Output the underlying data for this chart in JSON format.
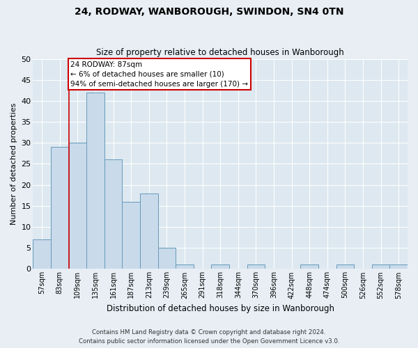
{
  "title_line1": "24, RODWAY, WANBOROUGH, SWINDON, SN4 0TN",
  "title_line2": "Size of property relative to detached houses in Wanborough",
  "xlabel": "Distribution of detached houses by size in Wanborough",
  "ylabel": "Number of detached properties",
  "categories": [
    "57sqm",
    "83sqm",
    "109sqm",
    "135sqm",
    "161sqm",
    "187sqm",
    "213sqm",
    "239sqm",
    "265sqm",
    "291sqm",
    "318sqm",
    "344sqm",
    "370sqm",
    "396sqm",
    "422sqm",
    "448sqm",
    "474sqm",
    "500sqm",
    "526sqm",
    "552sqm",
    "578sqm"
  ],
  "values": [
    7,
    29,
    30,
    42,
    26,
    16,
    18,
    5,
    1,
    0,
    1,
    0,
    1,
    0,
    0,
    1,
    0,
    1,
    0,
    1,
    1
  ],
  "bar_color": "#c9daea",
  "bar_edge_color": "#6699bb",
  "ylim": [
    0,
    50
  ],
  "yticks": [
    0,
    5,
    10,
    15,
    20,
    25,
    30,
    35,
    40,
    45,
    50
  ],
  "property_line_color": "#cc0000",
  "annotation_text": "24 RODWAY: 87sqm\n← 6% of detached houses are smaller (10)\n94% of semi-detached houses are larger (170) →",
  "annotation_box_color": "white",
  "annotation_box_edge_color": "#cc0000",
  "footer_line1": "Contains HM Land Registry data © Crown copyright and database right 2024.",
  "footer_line2": "Contains public sector information licensed under the Open Government Licence v3.0.",
  "background_color": "#e8eef4",
  "plot_background_color": "#dde8f0"
}
